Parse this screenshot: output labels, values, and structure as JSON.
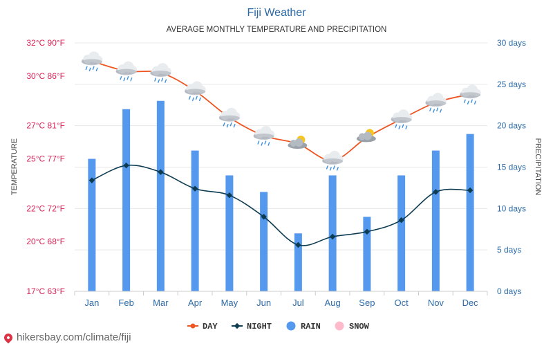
{
  "chart_data": {
    "type": "bar+line",
    "title": "Fiji Weather",
    "subtitle": "AVERAGE MONTHLY TEMPERATURE AND PRECIPITATION",
    "categories": [
      "Jan",
      "Feb",
      "Mar",
      "Apr",
      "May",
      "Jun",
      "Jul",
      "Aug",
      "Sep",
      "Oct",
      "Nov",
      "Dec"
    ],
    "left_axis": {
      "label": "TEMPERATURE",
      "range_c": [
        17,
        32
      ],
      "ticks": [
        {
          "value": 17,
          "label": "17°C 63°F"
        },
        {
          "value": 20,
          "label": "20°C 68°F"
        },
        {
          "value": 22,
          "label": "22°C 72°F"
        },
        {
          "value": 25,
          "label": "25°C 77°F"
        },
        {
          "value": 27,
          "label": "27°C 81°F"
        },
        {
          "value": 30,
          "label": "30°C 86°F"
        },
        {
          "value": 32,
          "label": "32°C 90°F"
        }
      ]
    },
    "right_axis": {
      "label": "PRECIPITATION",
      "range_days": [
        0,
        30
      ],
      "ticks": [
        {
          "value": 0,
          "label": "0 days"
        },
        {
          "value": 5,
          "label": "5 days"
        },
        {
          "value": 10,
          "label": "10 days"
        },
        {
          "value": 15,
          "label": "15 days"
        },
        {
          "value": 20,
          "label": "20 days"
        },
        {
          "value": 25,
          "label": "25 days"
        },
        {
          "value": 30,
          "label": "30 days"
        }
      ]
    },
    "series": [
      {
        "name": "DAY",
        "unit": "°C",
        "color": "#ee5522",
        "values": [
          30.9,
          30.3,
          30.2,
          29.1,
          27.5,
          26.4,
          25.9,
          24.9,
          26.3,
          27.4,
          28.4,
          28.9
        ]
      },
      {
        "name": "NIGHT",
        "unit": "°C",
        "color": "#0d3b52",
        "values": [
          23.7,
          24.6,
          24.2,
          23.2,
          22.8,
          21.5,
          19.8,
          20.3,
          20.6,
          21.3,
          23.0,
          23.1
        ]
      },
      {
        "name": "RAIN",
        "unit": "days",
        "color": "#5599ee",
        "values": [
          16,
          22,
          23,
          17,
          14,
          12,
          7,
          14,
          9,
          14,
          17,
          19
        ]
      },
      {
        "name": "SNOW",
        "unit": "days",
        "color": "#ffbbcc",
        "values": [
          0,
          0,
          0,
          0,
          0,
          0,
          0,
          0,
          0,
          0,
          0,
          0
        ]
      }
    ],
    "weather_icons": [
      "rain",
      "rain",
      "rain",
      "rain",
      "rain",
      "rain",
      "partly-cloudy",
      "rain",
      "partly-cloudy",
      "rain",
      "rain",
      "rain"
    ],
    "colors": {
      "title": "#2b6aa6",
      "left_tick": "#dd2255",
      "right_tick": "#2b6aa6",
      "axis_label": "#444444",
      "grid": "#e8e8e8",
      "category": "#2b6aa6"
    }
  },
  "footer": {
    "text": "hikersbay.com/climate/fiji",
    "pin_color": "#dd3344"
  }
}
